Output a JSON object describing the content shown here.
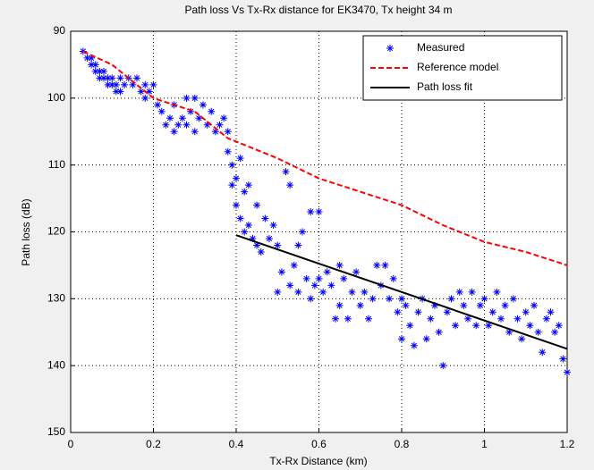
{
  "chart_data": {
    "type": "scatter",
    "title": "Path loss Vs Tx-Rx distance for EK3470, Tx height 34 m",
    "xlabel": "Tx-Rx Distance (km)",
    "ylabel": "Path loss (dB)",
    "xlim": [
      0,
      1.2
    ],
    "xticks": [
      0,
      0.2,
      0.4,
      0.6,
      0.8,
      1,
      1.2
    ],
    "ylim": [
      90,
      150
    ],
    "yticks": [
      90,
      100,
      110,
      120,
      130,
      140,
      150
    ],
    "y_reversed": true,
    "grid": true,
    "legend": "northeast",
    "series": [
      {
        "name": "Measured",
        "color": "#0000ff",
        "style": "markers",
        "x": [
          0.03,
          0.04,
          0.05,
          0.05,
          0.06,
          0.06,
          0.07,
          0.07,
          0.08,
          0.08,
          0.09,
          0.09,
          0.1,
          0.1,
          0.11,
          0.11,
          0.12,
          0.12,
          0.13,
          0.14,
          0.15,
          0.16,
          0.17,
          0.18,
          0.18,
          0.19,
          0.2,
          0.21,
          0.22,
          0.23,
          0.24,
          0.25,
          0.25,
          0.26,
          0.27,
          0.28,
          0.28,
          0.29,
          0.3,
          0.3,
          0.31,
          0.32,
          0.33,
          0.34,
          0.35,
          0.36,
          0.37,
          0.38,
          0.38,
          0.39,
          0.39,
          0.4,
          0.4,
          0.41,
          0.41,
          0.42,
          0.42,
          0.43,
          0.43,
          0.44,
          0.45,
          0.45,
          0.46,
          0.47,
          0.48,
          0.49,
          0.5,
          0.5,
          0.51,
          0.52,
          0.53,
          0.53,
          0.54,
          0.55,
          0.55,
          0.56,
          0.57,
          0.58,
          0.58,
          0.59,
          0.6,
          0.6,
          0.61,
          0.62,
          0.63,
          0.64,
          0.65,
          0.65,
          0.66,
          0.67,
          0.68,
          0.69,
          0.7,
          0.71,
          0.72,
          0.73,
          0.74,
          0.75,
          0.76,
          0.77,
          0.78,
          0.79,
          0.8,
          0.8,
          0.81,
          0.82,
          0.83,
          0.84,
          0.85,
          0.86,
          0.87,
          0.88,
          0.89,
          0.9,
          0.91,
          0.92,
          0.93,
          0.94,
          0.95,
          0.96,
          0.97,
          0.98,
          0.99,
          1.0,
          1.01,
          1.02,
          1.03,
          1.04,
          1.05,
          1.06,
          1.07,
          1.08,
          1.09,
          1.1,
          1.11,
          1.12,
          1.13,
          1.14,
          1.15,
          1.16,
          1.17,
          1.18,
          1.19,
          1.2
        ],
        "values": [
          93,
          94,
          94,
          95,
          95,
          96,
          96,
          97,
          96,
          97,
          97,
          98,
          97,
          98,
          98,
          99,
          97,
          99,
          98,
          97,
          98,
          97,
          99,
          98,
          100,
          99,
          98,
          101,
          102,
          104,
          103,
          101,
          105,
          104,
          103,
          100,
          104,
          102,
          100,
          105,
          103,
          101,
          104,
          102,
          105,
          104,
          103,
          105,
          108,
          110,
          113,
          112,
          116,
          109,
          118,
          114,
          120,
          113,
          119,
          121,
          116,
          122,
          123,
          118,
          121,
          119,
          122,
          129,
          126,
          111,
          113,
          128,
          125,
          122,
          129,
          120,
          127,
          117,
          130,
          128,
          117,
          127,
          129,
          126,
          128,
          133,
          125,
          131,
          127,
          133,
          129,
          126,
          131,
          129,
          133,
          130,
          125,
          128,
          125,
          130,
          127,
          132,
          130,
          136,
          131,
          134,
          137,
          132,
          130,
          136,
          133,
          131,
          135,
          140,
          132,
          130,
          134,
          129,
          131,
          133,
          129,
          134,
          131,
          130,
          134,
          132,
          129,
          133,
          131,
          135,
          130,
          133,
          136,
          132,
          134,
          131,
          135,
          138,
          133,
          132,
          135,
          134,
          139,
          141
        ]
      },
      {
        "name": "Reference model",
        "color": "#ff0000",
        "style": "dashed",
        "x": [
          0.03,
          0.1,
          0.2,
          0.3,
          0.38,
          0.5,
          0.6,
          0.7,
          0.8,
          0.9,
          1.0,
          1.1,
          1.2
        ],
        "values": [
          93,
          95,
          100,
          102,
          106,
          109,
          112,
          114,
          116,
          119,
          121.5,
          123,
          125
        ]
      },
      {
        "name": "Path loss fit",
        "color": "#000000",
        "style": "solid",
        "x": [
          0.4,
          1.2
        ],
        "values": [
          120.5,
          137.5
        ]
      }
    ]
  }
}
